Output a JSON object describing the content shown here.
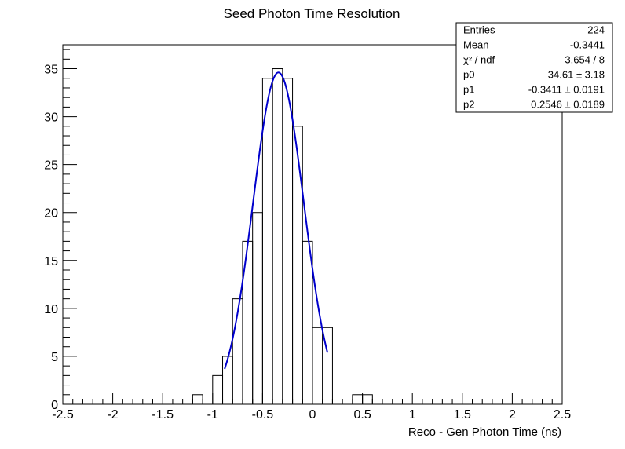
{
  "chart_data": {
    "type": "bar",
    "title": "Seed Photon Time Resolution",
    "xlabel": "Reco - Gen Photon Time (ns)",
    "ylabel": "",
    "xlim": [
      -2.5,
      2.5
    ],
    "ylim": [
      0,
      37.5
    ],
    "bin_width": 0.1,
    "bins": [
      {
        "x0": -1.2,
        "x1": -1.1,
        "value": 1
      },
      {
        "x0": -1.0,
        "x1": -0.9,
        "value": 3
      },
      {
        "x0": -0.9,
        "x1": -0.8,
        "value": 5
      },
      {
        "x0": -0.8,
        "x1": -0.7,
        "value": 11
      },
      {
        "x0": -0.7,
        "x1": -0.6,
        "value": 17
      },
      {
        "x0": -0.6,
        "x1": -0.5,
        "value": 20
      },
      {
        "x0": -0.5,
        "x1": -0.4,
        "value": 34
      },
      {
        "x0": -0.4,
        "x1": -0.3,
        "value": 35
      },
      {
        "x0": -0.3,
        "x1": -0.2,
        "value": 34
      },
      {
        "x0": -0.2,
        "x1": -0.1,
        "value": 29
      },
      {
        "x0": -0.1,
        "x1": 0.0,
        "value": 17
      },
      {
        "x0": 0.0,
        "x1": 0.1,
        "value": 8
      },
      {
        "x0": 0.1,
        "x1": 0.2,
        "value": 8
      },
      {
        "x0": 0.4,
        "x1": 0.5,
        "value": 1
      },
      {
        "x0": 0.5,
        "x1": 0.6,
        "value": 1
      }
    ],
    "fit": {
      "type": "gaussian",
      "p0": 34.61,
      "p1": -0.3411,
      "p2": 0.2546,
      "xmin": -0.88,
      "xmax": 0.15,
      "color": "#0000cc"
    },
    "x_ticks": [
      "-2.5",
      "-2",
      "-1.5",
      "-1",
      "-0.5",
      "0",
      "0.5",
      "1",
      "1.5",
      "2",
      "2.5"
    ],
    "y_ticks": [
      "0",
      "5",
      "10",
      "15",
      "20",
      "25",
      "30",
      "35"
    ],
    "stats": [
      {
        "name": "Entries",
        "value": "224"
      },
      {
        "name": "Mean",
        "value": "-0.3441"
      },
      {
        "name": "χ² / ndf",
        "value": "3.654 / 8"
      },
      {
        "name": "p0",
        "value": "34.61 ± 3.18"
      },
      {
        "name": "p1",
        "value": "-0.3411 ± 0.0191"
      },
      {
        "name": "p2",
        "value": "0.2546 ± 0.0189"
      }
    ],
    "grid": false
  }
}
